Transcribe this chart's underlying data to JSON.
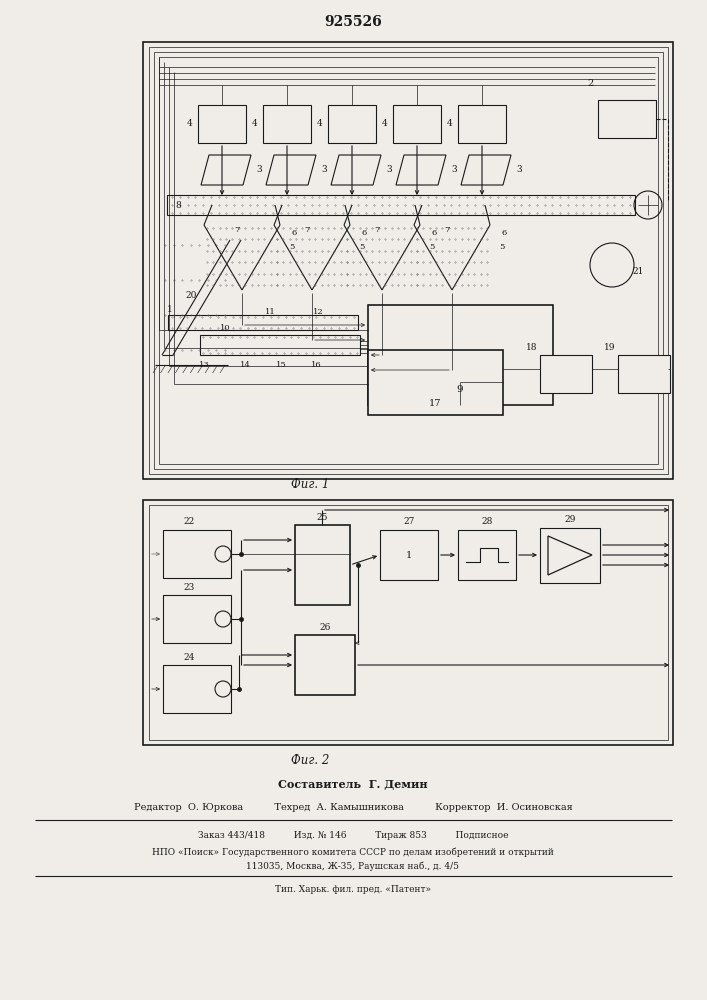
{
  "title": "925526",
  "fig1_caption": "Фиг. 1",
  "fig2_caption": "Фиг. 2",
  "footer_lines": [
    "Составитель  Г. Демин",
    "Редактор  О. Юркова          Техред  А. Камышникова          Корректор  И. Осиновская",
    "Заказ 443/418          Изд. № 146          Тираж 853          Подписное",
    "НПО «Поиск» Государственного комитета СССР по делам изобретений и открытий",
    "113035, Москва, Ж-35, Раушская наб., д. 4/5",
    "Тип. Харьк. фил. пред. «Патент»"
  ],
  "bg_color": "#f0ede8",
  "line_color": "#1a1a1a"
}
